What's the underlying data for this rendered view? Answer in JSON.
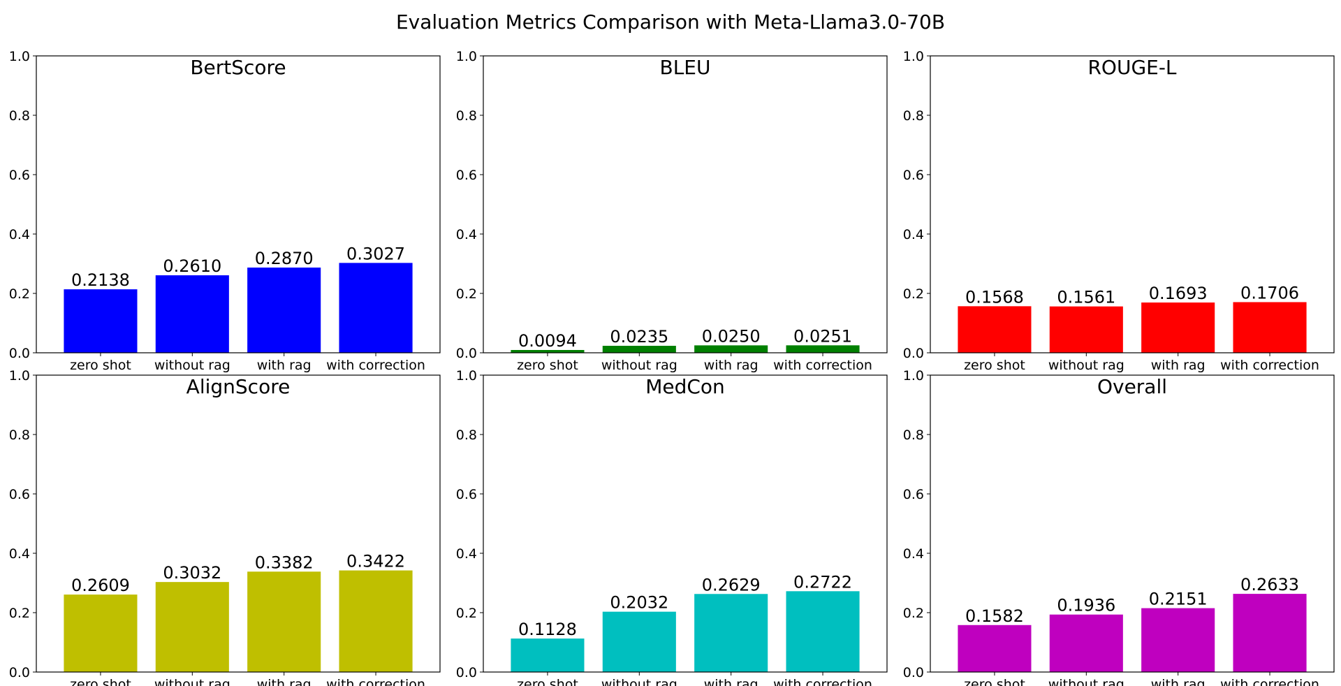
{
  "title": "Evaluation Metrics Comparison with Meta-Llama3.0-70B",
  "chart_data": [
    {
      "type": "bar",
      "title": "BertScore",
      "categories": [
        "zero shot",
        "without rag",
        "with rag",
        "with correction"
      ],
      "values": [
        0.2138,
        0.261,
        0.287,
        0.3027
      ],
      "value_labels": [
        "0.2138",
        "0.2610",
        "0.2870",
        "0.3027"
      ],
      "color": "#0000ff",
      "ylim": [
        0,
        1.0
      ],
      "yticks": [
        "0.0",
        "0.2",
        "0.4",
        "0.6",
        "0.8",
        "1.0"
      ]
    },
    {
      "type": "bar",
      "title": "BLEU",
      "categories": [
        "zero shot",
        "without rag",
        "with rag",
        "with correction"
      ],
      "values": [
        0.0094,
        0.0235,
        0.025,
        0.0251
      ],
      "value_labels": [
        "0.0094",
        "0.0235",
        "0.0250",
        "0.0251"
      ],
      "color": "#008000",
      "ylim": [
        0,
        1.0
      ],
      "yticks": [
        "0.0",
        "0.2",
        "0.4",
        "0.6",
        "0.8",
        "1.0"
      ]
    },
    {
      "type": "bar",
      "title": "ROUGE-L",
      "categories": [
        "zero shot",
        "without rag",
        "with rag",
        "with correction"
      ],
      "values": [
        0.1568,
        0.1561,
        0.1693,
        0.1706
      ],
      "value_labels": [
        "0.1568",
        "0.1561",
        "0.1693",
        "0.1706"
      ],
      "color": "#ff0000",
      "ylim": [
        0,
        1.0
      ],
      "yticks": [
        "0.0",
        "0.2",
        "0.4",
        "0.6",
        "0.8",
        "1.0"
      ]
    },
    {
      "type": "bar",
      "title": "AlignScore",
      "categories": [
        "zero shot",
        "without rag",
        "with rag",
        "with correction"
      ],
      "values": [
        0.2609,
        0.3032,
        0.3382,
        0.3422
      ],
      "value_labels": [
        "0.2609",
        "0.3032",
        "0.3382",
        "0.3422"
      ],
      "color": "#bfbf00",
      "ylim": [
        0,
        1.0
      ],
      "yticks": [
        "0.0",
        "0.2",
        "0.4",
        "0.6",
        "0.8",
        "1.0"
      ]
    },
    {
      "type": "bar",
      "title": "MedCon",
      "categories": [
        "zero shot",
        "without rag",
        "with rag",
        "with correction"
      ],
      "values": [
        0.1128,
        0.2032,
        0.2629,
        0.2722
      ],
      "value_labels": [
        "0.1128",
        "0.2032",
        "0.2629",
        "0.2722"
      ],
      "color": "#00bfbf",
      "ylim": [
        0,
        1.0
      ],
      "yticks": [
        "0.0",
        "0.2",
        "0.4",
        "0.6",
        "0.8",
        "1.0"
      ]
    },
    {
      "type": "bar",
      "title": "Overall",
      "categories": [
        "zero shot",
        "without rag",
        "with rag",
        "with correction"
      ],
      "values": [
        0.1582,
        0.1936,
        0.2151,
        0.2633
      ],
      "value_labels": [
        "0.1582",
        "0.1936",
        "0.2151",
        "0.2633"
      ],
      "color": "#bf00bf",
      "ylim": [
        0,
        1.0
      ],
      "yticks": [
        "0.0",
        "0.2",
        "0.4",
        "0.6",
        "0.8",
        "1.0"
      ]
    }
  ]
}
